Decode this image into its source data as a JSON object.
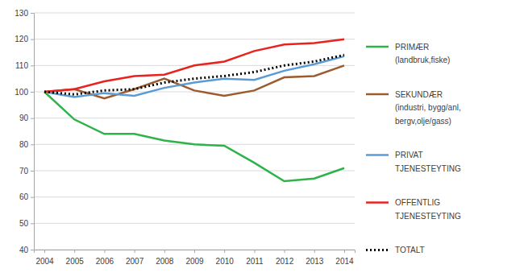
{
  "chart_data": {
    "type": "line",
    "categories": [
      "2004",
      "2005",
      "2006",
      "2007",
      "2008",
      "2009",
      "2010",
      "2011",
      "2012",
      "2013",
      "2014"
    ],
    "series": [
      {
        "name": "PRIMÆR\n(landbruk,fiske)",
        "color": "#2db34a",
        "line_style": "solid",
        "values": [
          100,
          89.5,
          84,
          84,
          81.5,
          80,
          79.5,
          73,
          66,
          67,
          71
        ]
      },
      {
        "name": "SEKUNDÆR\n(industri, bygg/anl,\nbergv,olje/gass)",
        "color": "#9c5b2e",
        "line_style": "solid",
        "values": [
          100,
          101,
          97.5,
          101,
          105,
          100.5,
          98.5,
          100.5,
          105.5,
          106,
          110
        ]
      },
      {
        "name": "PRIVAT\nTJENESTEYTING",
        "color": "#5b9bd5",
        "line_style": "solid",
        "values": [
          100,
          98,
          99.5,
          98.5,
          101.5,
          103.5,
          105,
          104.5,
          108,
          110.5,
          113.5
        ]
      },
      {
        "name": "OFFENTLIG\nTJENESTEYTING",
        "color": "#e8231f",
        "line_style": "solid",
        "values": [
          100,
          101,
          104,
          106,
          106.5,
          110,
          111.5,
          115.5,
          118,
          118.5,
          120
        ]
      },
      {
        "name": "TOTALT",
        "color": "#000000",
        "line_style": "dotted",
        "values": [
          100,
          99,
          100.5,
          101,
          103.5,
          105,
          106,
          107.5,
          110,
          111.5,
          114
        ]
      }
    ],
    "ylim": [
      40,
      130
    ],
    "yticks": [
      40,
      50,
      60,
      70,
      80,
      90,
      100,
      110,
      120,
      130
    ],
    "grid": true,
    "legend": "right"
  }
}
